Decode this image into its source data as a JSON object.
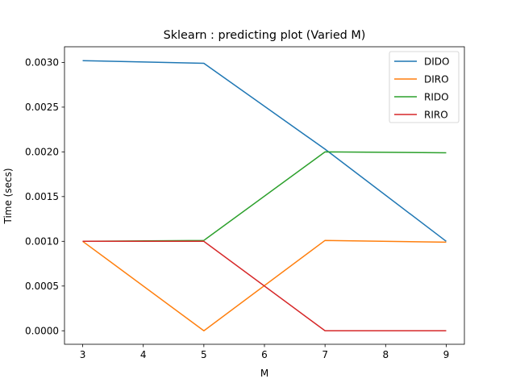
{
  "chart_data": {
    "type": "line",
    "title": "Sklearn : predicting plot (Varied M)",
    "xlabel": "M",
    "ylabel": "Time (secs)",
    "x": [
      3,
      5,
      7,
      9
    ],
    "xlim": [
      2.7,
      9.3
    ],
    "ylim": [
      -0.000151,
      0.003175
    ],
    "xticks": [
      3,
      4,
      5,
      6,
      7,
      8,
      9
    ],
    "yticks": [
      0.0,
      0.0005,
      0.001,
      0.0015,
      0.002,
      0.0025,
      0.003
    ],
    "ytick_labels": [
      "0.0000",
      "0.0005",
      "0.0010",
      "0.0015",
      "0.0020",
      "0.0025",
      "0.0030"
    ],
    "grid": false,
    "legend_position": "top-right",
    "series": [
      {
        "name": "DIDO",
        "color": "#1f77b4",
        "values": [
          0.00302,
          0.00299,
          0.00203,
          0.001
        ]
      },
      {
        "name": "DIRO",
        "color": "#ff7f0e",
        "values": [
          0.001,
          0.0,
          0.00101,
          0.00099
        ]
      },
      {
        "name": "RIDO",
        "color": "#2ca02c",
        "values": [
          0.001,
          0.00101,
          0.002,
          0.00199
        ]
      },
      {
        "name": "RIRO",
        "color": "#d62728",
        "values": [
          0.001,
          0.001,
          0.0,
          0.0
        ]
      }
    ]
  }
}
